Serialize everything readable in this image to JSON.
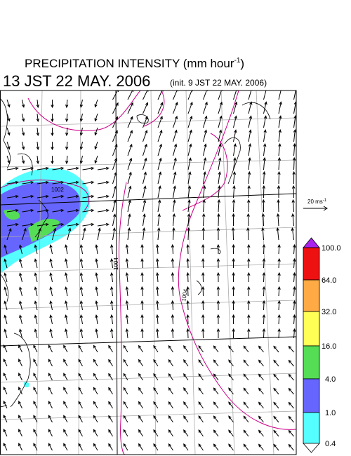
{
  "title": {
    "text": "PRECIPITATION INTENSITY (mm hour",
    "superscript": "-1",
    "close": ")"
  },
  "valid_time": "13 JST 22 MAY. 2006",
  "init_time": "(init. 9 JST 22 MAY. 2006)",
  "reference_vector": {
    "label": "20 ms",
    "superscript": "-1"
  },
  "contour_labels": [
    "1002",
    "1004",
    "1004"
  ],
  "colorbar": {
    "labels": [
      "100.0",
      "64.0",
      "32.0",
      "16.0",
      "4.0",
      "1.0",
      "0.4"
    ]
  }
}
